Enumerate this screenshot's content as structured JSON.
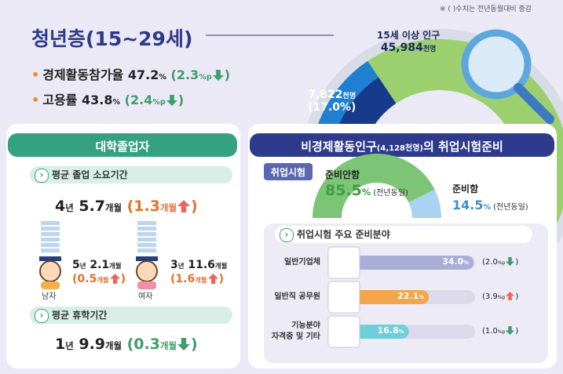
{
  "note": "※ ( )수치는 전년동월대비 증감",
  "paren_open": "(",
  "paren_close": ")",
  "youth": {
    "title": "청년층(15~29세)",
    "stats": [
      {
        "label": "경제활동참가율",
        "value": "47.2",
        "unit": "%",
        "change": "2.3",
        "change_unit": "%p",
        "direction": "down"
      },
      {
        "label": "고용률",
        "value": "43.8",
        "unit": "%",
        "change": "2.4",
        "change_unit": "%p",
        "direction": "down"
      }
    ]
  },
  "population": {
    "total_label": "15세 이상 인구",
    "total": "45,984",
    "unit": "천명",
    "youth": "7,822",
    "youth_share": {
      "value": 17.0,
      "label": "(17.0%)"
    }
  },
  "graduates": {
    "title": "대학졸업자",
    "duration": {
      "title": "평균 졸업 소요기간",
      "years": "4",
      "year_unit": "년",
      "months": "5.7",
      "month_unit": "개월",
      "change": "1.3",
      "direction": "up",
      "male": {
        "label": "남자",
        "years": "5",
        "months": "2.1",
        "change": "0.5",
        "direction": "up"
      },
      "female": {
        "label": "여자",
        "years": "3",
        "months": "11.6",
        "change": "1.6",
        "direction": "up"
      }
    },
    "leave": {
      "title": "평균 휴학기간",
      "years": "1",
      "months": "9.9",
      "change": "0.3",
      "direction": "down"
    }
  },
  "exam": {
    "title": [
      "비경제활동인구",
      "(4,128천명)",
      "의 취업시험준비"
    ],
    "tag": "취업시험",
    "unit": "%",
    "not_preparing": {
      "label": "준비안함",
      "value": 85.5,
      "value_label": "85.5",
      "note": "(전년동일)"
    },
    "preparing": {
      "label": "준비함",
      "value": 14.5,
      "value_label": "14.5",
      "note": "(전년동일)"
    },
    "fields": {
      "title": "취업시험 주요 준비분야",
      "change_unit": "%p",
      "items": [
        {
          "label": [
            "일반기업체"
          ],
          "value": 34.0,
          "value_label": "34.0",
          "change": "2.0",
          "direction": "down",
          "color": "#a9aed6"
        },
        {
          "label": [
            "일반직 공무원"
          ],
          "value": 22.1,
          "value_label": "22.1",
          "change": "3.9",
          "direction": "up",
          "color": "#f3a64a"
        },
        {
          "label": [
            "기능분야",
            "자격증 및 기타"
          ],
          "value": 16.8,
          "value_label": "16.8",
          "change": "1.0",
          "direction": "down",
          "color": "#6fcfd8"
        }
      ]
    }
  }
}
